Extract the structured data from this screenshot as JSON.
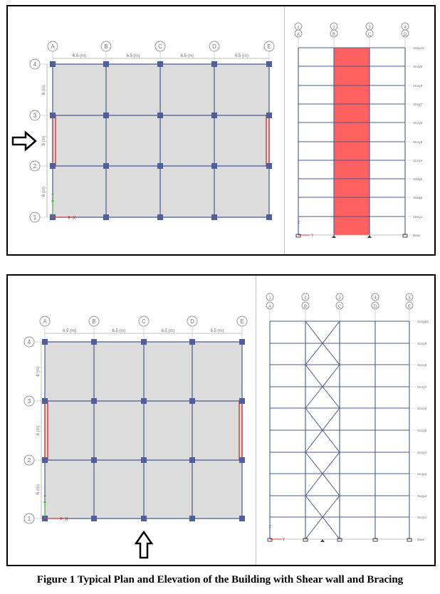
{
  "caption": "Figure 1 Typical Plan and Elevation of the Building with Shear wall and Bracing",
  "plan": {
    "grid_x_labels": [
      "A",
      "B",
      "C",
      "D",
      "E"
    ],
    "grid_y_labels": [
      "1",
      "2",
      "3",
      "4"
    ],
    "bay_x_label": "6.5 (m)",
    "bay_y_label": "6 (m)",
    "axis_x": "X",
    "axis_y": "Y"
  },
  "elevation": {
    "top_bubble_labels": [
      "1",
      "2",
      "3",
      "4",
      "5"
    ],
    "bottom_bubble_labels": [
      "A",
      "B",
      "C",
      "D",
      "E"
    ],
    "story_labels": [
      "Story10",
      "Story9",
      "Story8",
      "Story7",
      "Story6",
      "Story5",
      "Story4",
      "Story3",
      "Story2",
      "Story1",
      "Base"
    ],
    "axis_x": "Y",
    "axis_z": "Z"
  },
  "colors": {
    "frame": "#4a5a8c",
    "slab": "#dcdcdc",
    "column": "#4f5f9c",
    "shear_wall_plan": "#cc2222",
    "shear_wall_elev": "#ff6060",
    "bubble": "#9a9a9a",
    "axis_x": "#e03030",
    "axis_y": "#30c030"
  }
}
